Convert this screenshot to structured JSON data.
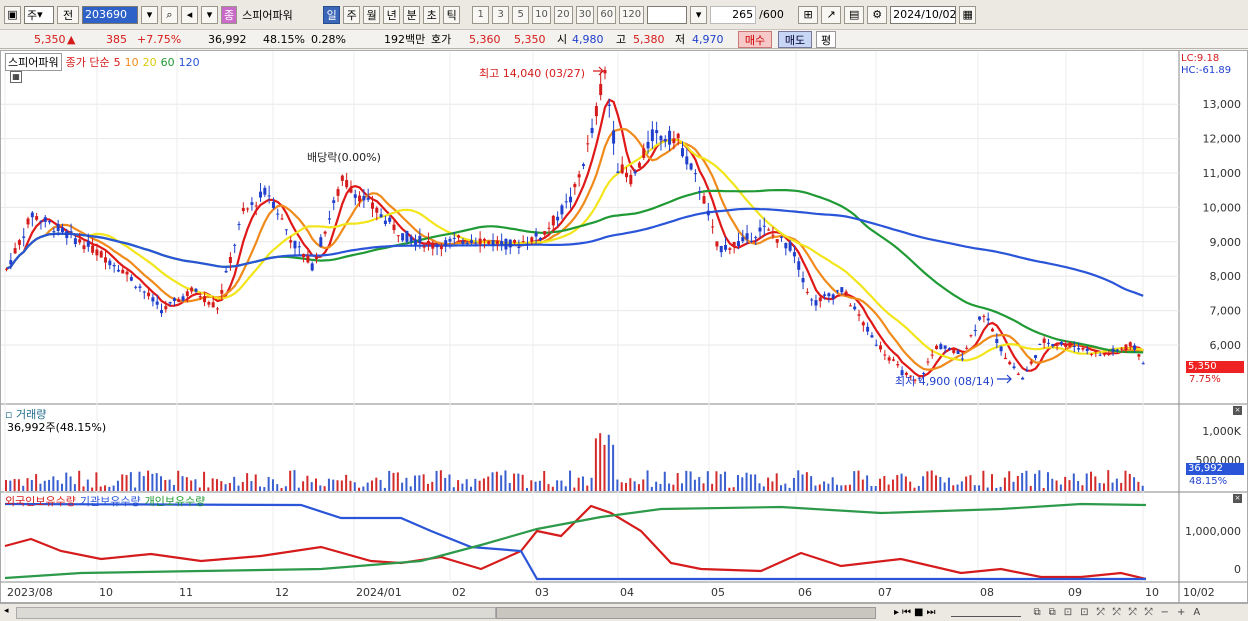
{
  "toolbar": {
    "market": "주",
    "prev": "전",
    "code": "203690",
    "name_badge": "종",
    "name": "스피어파워",
    "periods": [
      "일",
      "주",
      "월",
      "년",
      "분",
      "초",
      "틱"
    ],
    "active_period": "일",
    "intervals": [
      "1",
      "3",
      "5",
      "10",
      "20",
      "30",
      "60",
      "120"
    ],
    "count": "265",
    "count_total": "/600",
    "date": "2024/10/02"
  },
  "quote": {
    "price": "5,350",
    "change": "385",
    "change_pct": "+7.75%",
    "volume": "36,992",
    "volume_ratio": "48.15%",
    "turnover_pct": "0.28%",
    "amount": "192백만",
    "bidask_label": "호가",
    "ask": "5,360",
    "bid": "5,350",
    "open_label": "시",
    "open": "4,980",
    "high_label": "고",
    "high": "5,380",
    "low_label": "저",
    "low": "4,970",
    "buy_btn": "매수",
    "sell_btn": "매도",
    "eval_btn": "평"
  },
  "price_panel": {
    "title": "스피어파워",
    "ma_label": "종가 단순",
    "ma_periods": [
      "5",
      "10",
      "20",
      "60",
      "120"
    ],
    "ma_colors": [
      "#e01818",
      "#f08a1a",
      "#f2e51a",
      "#1f9a34",
      "#2a55d8"
    ],
    "lc": "LC:9.18",
    "hc": "HC:-61.89",
    "high_annotation": "최고 14,040 (03/27)",
    "low_annotation": "최저 4,900 (08/14)",
    "dividend": "배당락(0.00%)",
    "y_ticks": [
      "13,000",
      "12,000",
      "11,000",
      "10,000",
      "9,000",
      "8,000",
      "7,000",
      "6,000"
    ],
    "current_price": "5,350",
    "current_pct": "7.75%"
  },
  "volume_panel": {
    "title": "거래량",
    "value": "36,992주(48.15%)",
    "y_ticks": [
      "1,000K",
      "500,000"
    ],
    "current": "36,992",
    "current_pct": "48.15%"
  },
  "holding_panel": {
    "titles": [
      "외국인보유수량",
      "기관보유수량",
      "개인보유수량"
    ],
    "y_ticks": [
      "1,000,000",
      "0"
    ]
  },
  "x_axis": [
    "2023/08",
    "10",
    "11",
    "12",
    "2024/01",
    "02",
    "03",
    "04",
    "05",
    "06",
    "07",
    "08",
    "09",
    "10",
    "10/02"
  ],
  "colors": {
    "up": "#d51b1b",
    "down": "#1f3fcc"
  }
}
